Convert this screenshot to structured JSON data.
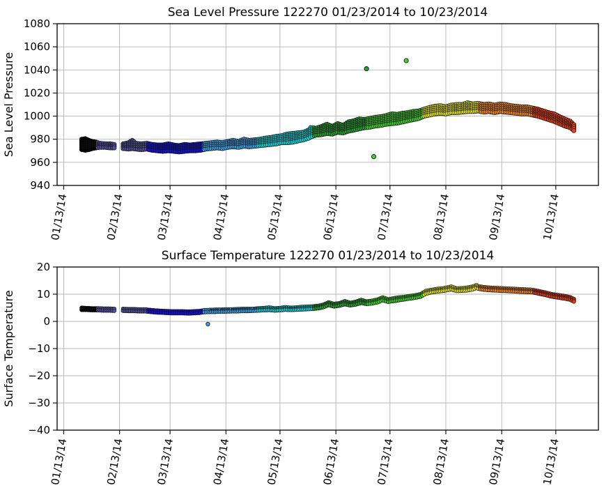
{
  "figure": {
    "background": "#ffffff",
    "grid_color": "#b4b4b4",
    "spine_color": "#000000",
    "marker_edge_color": "#111111"
  },
  "month_colors": [
    {
      "month": "Jan",
      "start_day": -10,
      "end_day": 18.5,
      "color": "#000000"
    },
    {
      "month": "Feb",
      "start_day": 18.5,
      "end_day": 46.5,
      "color": "#55519e"
    },
    {
      "month": "Mar",
      "start_day": 46.5,
      "end_day": 77.5,
      "color": "#1411e6"
    },
    {
      "month": "Apr",
      "start_day": 77.5,
      "end_day": 107.5,
      "color": "#38a8f0"
    },
    {
      "month": "May",
      "start_day": 107.5,
      "end_day": 138.5,
      "color": "#04dde6"
    },
    {
      "month": "Jun",
      "start_day": 138.5,
      "end_day": 168.5,
      "color": "#21a82e"
    },
    {
      "month": "Jul",
      "start_day": 168.5,
      "end_day": 199.5,
      "color": "#3fd723"
    },
    {
      "month": "Aug",
      "start_day": 199.5,
      "end_day": 230.5,
      "color": "#f1ee04"
    },
    {
      "month": "Sep",
      "start_day": 230.5,
      "end_day": 260.5,
      "color": "#ff8e0c"
    },
    {
      "month": "Oct",
      "start_day": 260.5,
      "end_day": 300,
      "color": "#ee3d0e"
    }
  ],
  "x_axis": {
    "baseline_date": "01/13/2014",
    "xlim_days": [
      -3.65,
      296.65
    ],
    "tick_days": [
      0,
      31,
      59,
      90,
      120,
      151,
      181,
      212,
      243,
      273
    ],
    "tick_labels": [
      "01/13/14",
      "02/13/14",
      "03/13/14",
      "04/13/14",
      "05/13/14",
      "06/13/14",
      "07/13/14",
      "08/13/14",
      "09/13/14",
      "10/13/14"
    ],
    "label_rotation_deg": 80
  },
  "chart_data": [
    {
      "type": "scatter",
      "title": "Sea Level Pressure 122270  01/23/2014 to 10/23/2014",
      "ylabel": "Sea Level Pressure",
      "ylim": [
        940,
        1080
      ],
      "yticks": [
        {
          "v": 940,
          "label": "940"
        },
        {
          "v": 960,
          "label": "960"
        },
        {
          "v": 980,
          "label": "980"
        },
        {
          "v": 1000,
          "label": "1000"
        },
        {
          "v": 1020,
          "label": "1020"
        },
        {
          "v": 1040,
          "label": "1040"
        },
        {
          "v": 1060,
          "label": "1060"
        },
        {
          "v": 1080,
          "label": "1080"
        }
      ],
      "grid": true,
      "marker_radius": 3.1,
      "band_segments": [
        [
          [
            10,
            971,
            980
          ],
          [
            12,
            970.5,
            980.5
          ],
          [
            14,
            971,
            979
          ],
          [
            16,
            972,
            978
          ],
          [
            18,
            972.5,
            977.5
          ],
          [
            20,
            973,
            976.5
          ],
          [
            23,
            973,
            976
          ],
          [
            26,
            972.5,
            976
          ],
          [
            28,
            972.5,
            975.5
          ]
        ],
        [
          [
            33,
            972,
            976
          ],
          [
            36,
            971.5,
            977
          ],
          [
            38,
            972,
            979
          ],
          [
            40,
            971.5,
            976.5
          ],
          [
            43,
            971,
            976
          ],
          [
            46,
            971.5,
            976.5
          ],
          [
            49,
            970.5,
            975.5
          ],
          [
            52,
            970,
            975
          ],
          [
            55,
            969.5,
            975
          ],
          [
            58,
            970,
            976
          ],
          [
            61,
            969.5,
            975
          ],
          [
            64,
            969,
            974.5
          ],
          [
            67,
            969.5,
            975.5
          ],
          [
            70,
            970,
            975
          ],
          [
            73,
            970,
            975.5
          ],
          [
            76,
            970.5,
            976
          ],
          [
            79,
            971.5,
            976.5
          ],
          [
            82,
            972,
            977
          ],
          [
            85,
            972.5,
            977.5
          ],
          [
            88,
            972,
            977
          ],
          [
            91,
            973,
            978
          ],
          [
            94,
            973.5,
            979
          ],
          [
            97,
            973,
            978
          ],
          [
            100,
            974,
            980
          ],
          [
            103,
            973.5,
            979
          ],
          [
            106,
            974,
            979.5
          ],
          [
            109,
            974.5,
            980
          ],
          [
            112,
            975,
            981
          ],
          [
            115,
            975.5,
            981.5
          ],
          [
            118,
            976,
            982.5
          ],
          [
            121,
            977,
            983
          ],
          [
            124,
            977,
            984.5
          ],
          [
            127,
            977.5,
            985
          ],
          [
            130,
            978.5,
            985.5
          ],
          [
            133,
            979.5,
            986
          ],
          [
            136,
            981,
            988
          ],
          [
            137,
            982,
            990
          ],
          [
            140,
            983.5,
            989.5
          ],
          [
            143,
            984,
            991
          ],
          [
            146,
            985,
            993
          ],
          [
            149,
            984.5,
            991
          ],
          [
            152,
            986,
            993.5
          ],
          [
            155,
            985.5,
            992
          ],
          [
            158,
            987,
            995
          ],
          [
            161,
            988,
            996
          ],
          [
            164,
            989,
            997.5
          ],
          [
            167,
            990,
            997
          ],
          [
            170,
            990.5,
            998
          ],
          [
            173,
            991.5,
            999
          ],
          [
            176,
            992,
            999.5
          ],
          [
            179,
            993,
            1000.5
          ],
          [
            182,
            993.5,
            1002
          ],
          [
            185,
            994,
            1001.5
          ],
          [
            188,
            995,
            1002.5
          ],
          [
            191,
            996,
            1003
          ],
          [
            194,
            997,
            1004
          ],
          [
            197,
            998,
            1004.5
          ],
          [
            200,
            1000,
            1006
          ],
          [
            203,
            1001,
            1007.5
          ],
          [
            206,
            1002,
            1008.5
          ],
          [
            209,
            1002.5,
            1009
          ],
          [
            212,
            1002,
            1008
          ],
          [
            215,
            1003,
            1009.5
          ],
          [
            218,
            1003,
            1010
          ],
          [
            221,
            1003.5,
            1010
          ],
          [
            224,
            1004,
            1011.5
          ],
          [
            227,
            1004,
            1010.5
          ],
          [
            230,
            1004.5,
            1011
          ],
          [
            233,
            1003.5,
            1010
          ],
          [
            236,
            1004,
            1010.5
          ],
          [
            239,
            1003,
            1009.5
          ],
          [
            242,
            1004,
            1010.5
          ],
          [
            245,
            1003.5,
            1010
          ],
          [
            248,
            1003,
            1009
          ],
          [
            251,
            1002.5,
            1008.5
          ],
          [
            254,
            1002,
            1008
          ],
          [
            257,
            1002,
            1008
          ],
          [
            260,
            1001,
            1007
          ],
          [
            263,
            1000,
            1006
          ],
          [
            266,
            998.5,
            1004.5
          ],
          [
            269,
            997,
            1003
          ],
          [
            272,
            995.5,
            1002
          ],
          [
            275,
            993.5,
            999.5
          ],
          [
            278,
            991.5,
            997.5
          ],
          [
            281,
            990,
            995.5
          ],
          [
            283,
            987.5,
            992.5
          ]
        ]
      ],
      "outliers": [
        [
          168,
          1041
        ],
        [
          190,
          1048
        ],
        [
          172,
          965
        ]
      ]
    },
    {
      "type": "scatter",
      "title": "Surface Temperature 122270  01/23/2014 to 10/23/2014",
      "ylabel": "Surface Temperature",
      "ylim": [
        -40,
        20
      ],
      "yticks": [
        {
          "v": -40,
          "label": "−40"
        },
        {
          "v": -30,
          "label": "−30"
        },
        {
          "v": -20,
          "label": "−20"
        },
        {
          "v": -10,
          "label": "−10"
        },
        {
          "v": 0,
          "label": "0"
        },
        {
          "v": 10,
          "label": "10"
        },
        {
          "v": 20,
          "label": "20"
        }
      ],
      "grid": true,
      "marker_radius": 2.7,
      "band_segments": [
        [
          [
            10,
            4.2,
            5.0
          ],
          [
            13,
            4.2,
            4.9
          ],
          [
            16,
            4.1,
            4.8
          ],
          [
            19,
            4.1,
            4.8
          ],
          [
            22,
            4.0,
            4.7
          ],
          [
            25,
            4.0,
            4.7
          ],
          [
            28,
            3.9,
            4.6
          ]
        ],
        [
          [
            33,
            3.9,
            4.6
          ],
          [
            36,
            3.8,
            4.5
          ],
          [
            39,
            3.8,
            4.5
          ],
          [
            42,
            3.7,
            4.4
          ],
          [
            45,
            3.7,
            4.4
          ],
          [
            48,
            3.5,
            4.2
          ],
          [
            51,
            3.3,
            4.0
          ],
          [
            54,
            3.2,
            3.9
          ],
          [
            57,
            3.1,
            3.8
          ],
          [
            60,
            3.0,
            3.7
          ],
          [
            63,
            3.0,
            3.7
          ],
          [
            66,
            3.0,
            3.7
          ],
          [
            69,
            2.9,
            3.6
          ],
          [
            72,
            3.0,
            3.7
          ],
          [
            75,
            3.1,
            3.8
          ],
          [
            78,
            3.4,
            4.1
          ],
          [
            81,
            3.5,
            4.2
          ],
          [
            84,
            3.5,
            4.3
          ],
          [
            87,
            3.6,
            4.3
          ],
          [
            90,
            3.6,
            4.4
          ],
          [
            93,
            3.7,
            4.4
          ],
          [
            96,
            3.7,
            4.5
          ],
          [
            99,
            3.8,
            4.6
          ],
          [
            102,
            3.8,
            4.6
          ],
          [
            105,
            3.9,
            4.6
          ],
          [
            108,
            4.0,
            4.8
          ],
          [
            111,
            4.1,
            4.9
          ],
          [
            114,
            4.2,
            5.1
          ],
          [
            117,
            4.0,
            4.8
          ],
          [
            120,
            4.1,
            4.9
          ],
          [
            123,
            4.3,
            5.2
          ],
          [
            126,
            4.2,
            5.0
          ],
          [
            129,
            4.3,
            5.1
          ],
          [
            132,
            4.4,
            5.3
          ],
          [
            135,
            4.5,
            5.4
          ],
          [
            138,
            4.6,
            5.5
          ],
          [
            141,
            4.8,
            5.7
          ],
          [
            144,
            5.2,
            6.1
          ],
          [
            147,
            6.0,
            7.0
          ],
          [
            150,
            5.5,
            6.4
          ],
          [
            153,
            5.8,
            6.7
          ],
          [
            156,
            6.3,
            7.4
          ],
          [
            159,
            5.9,
            6.8
          ],
          [
            162,
            6.2,
            7.2
          ],
          [
            165,
            6.8,
            7.9
          ],
          [
            168,
            6.4,
            7.3
          ],
          [
            171,
            6.6,
            7.6
          ],
          [
            174,
            7.0,
            8.0
          ],
          [
            177,
            7.8,
            8.8
          ],
          [
            180,
            7.2,
            8.1
          ],
          [
            183,
            7.5,
            8.5
          ],
          [
            186,
            7.8,
            8.8
          ],
          [
            189,
            8.1,
            9.0
          ],
          [
            192,
            8.4,
            9.3
          ],
          [
            195,
            8.7,
            9.6
          ],
          [
            198,
            9.1,
            10.0
          ],
          [
            201,
            10.2,
            11.2
          ],
          [
            204,
            10.7,
            11.6
          ],
          [
            207,
            11.0,
            11.9
          ],
          [
            210,
            11.2,
            12.1
          ],
          [
            213,
            11.5,
            12.5
          ],
          [
            215,
            11.8,
            12.8
          ],
          [
            218,
            11.2,
            12.1
          ],
          [
            221,
            11.3,
            12.2
          ],
          [
            224,
            11.4,
            12.4
          ],
          [
            227,
            11.8,
            12.8
          ],
          [
            229,
            12.3,
            13.3
          ],
          [
            230,
            12.0,
            12.9
          ],
          [
            233,
            11.7,
            12.6
          ],
          [
            236,
            11.5,
            12.4
          ],
          [
            239,
            11.4,
            12.3
          ],
          [
            242,
            11.3,
            12.2
          ],
          [
            245,
            11.2,
            12.1
          ],
          [
            248,
            11.1,
            12.0
          ],
          [
            251,
            11.0,
            11.9
          ],
          [
            254,
            10.9,
            11.8
          ],
          [
            257,
            10.8,
            11.7
          ],
          [
            260,
            10.7,
            11.6
          ],
          [
            263,
            10.3,
            11.2
          ],
          [
            266,
            9.9,
            10.8
          ],
          [
            269,
            9.4,
            10.3
          ],
          [
            272,
            9.0,
            9.9
          ],
          [
            275,
            8.7,
            9.6
          ],
          [
            278,
            8.4,
            9.3
          ],
          [
            281,
            8.0,
            8.9
          ],
          [
            283,
            7.3,
            8.2
          ]
        ]
      ],
      "outliers": [
        [
          80,
          -1.0
        ]
      ]
    }
  ]
}
